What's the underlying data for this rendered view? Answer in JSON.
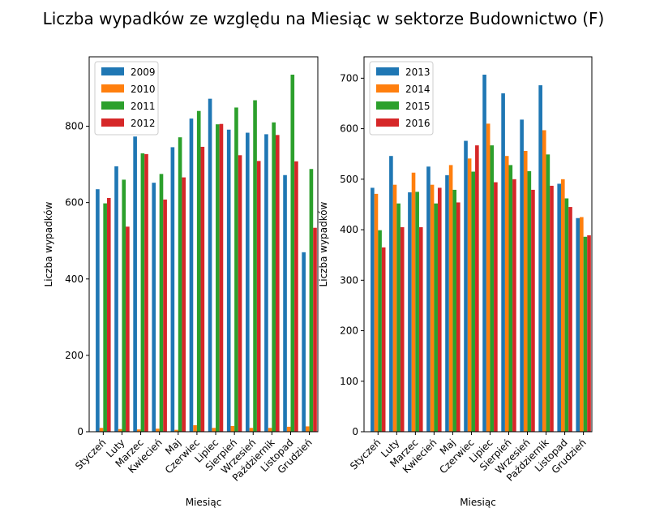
{
  "title": "Liczba wypadków ze względu na Miesiąc w sektorze Budownictwo  (F)",
  "colors": [
    "#1f77b4",
    "#ff7f0e",
    "#2ca02c",
    "#d62728"
  ],
  "chart_data": [
    {
      "type": "bar",
      "xlabel": "Miesiąc",
      "ylabel": "Liczba wypadków",
      "categories": [
        "Styczeń",
        "Luty",
        "Marzec",
        "Kwiecień",
        "Maj",
        "Czerwiec",
        "Lipiec",
        "Sierpień",
        "Wrzesień",
        "Październik",
        "Listopad",
        "Grudzień"
      ],
      "ylim": [
        0,
        935
      ],
      "yticks": [
        0,
        200,
        400,
        600,
        800
      ],
      "legend_position": "upper left",
      "grid": false,
      "series": [
        {
          "name": "2009",
          "values": [
            635,
            695,
            773,
            652,
            745,
            820,
            872,
            791,
            783,
            779,
            672,
            470
          ]
        },
        {
          "name": "2010",
          "values": [
            10,
            7,
            6,
            8,
            5,
            17,
            10,
            15,
            10,
            10,
            13,
            14
          ]
        },
        {
          "name": "2011",
          "values": [
            598,
            660,
            729,
            675,
            771,
            840,
            805,
            849,
            868,
            810,
            935,
            688
          ]
        },
        {
          "name": "2012",
          "values": [
            612,
            537,
            727,
            608,
            666,
            746,
            806,
            724,
            709,
            777,
            708,
            534
          ]
        }
      ]
    },
    {
      "type": "bar",
      "xlabel": "Miesiąc",
      "ylabel": "Liczba wypadków",
      "categories": [
        "Styczeń",
        "Luty",
        "Marzec",
        "Kwiecień",
        "Maj",
        "Czerwiec",
        "Lipiec",
        "Sierpień",
        "Wrzesień",
        "Październik",
        "Listopad",
        "Grudzień"
      ],
      "ylim": [
        0,
        707
      ],
      "yticks": [
        0,
        100,
        200,
        300,
        400,
        500,
        600,
        700
      ],
      "legend_position": "upper left",
      "grid": false,
      "series": [
        {
          "name": "2013",
          "values": [
            483,
            546,
            474,
            525,
            508,
            576,
            707,
            670,
            618,
            686,
            491,
            423
          ]
        },
        {
          "name": "2014",
          "values": [
            471,
            489,
            513,
            489,
            528,
            541,
            610,
            546,
            556,
            597,
            500,
            425
          ]
        },
        {
          "name": "2015",
          "values": [
            399,
            452,
            475,
            452,
            479,
            515,
            567,
            528,
            516,
            549,
            462,
            386
          ]
        },
        {
          "name": "2016",
          "values": [
            365,
            405,
            405,
            483,
            454,
            567,
            494,
            500,
            479,
            487,
            445,
            389
          ]
        }
      ]
    }
  ]
}
